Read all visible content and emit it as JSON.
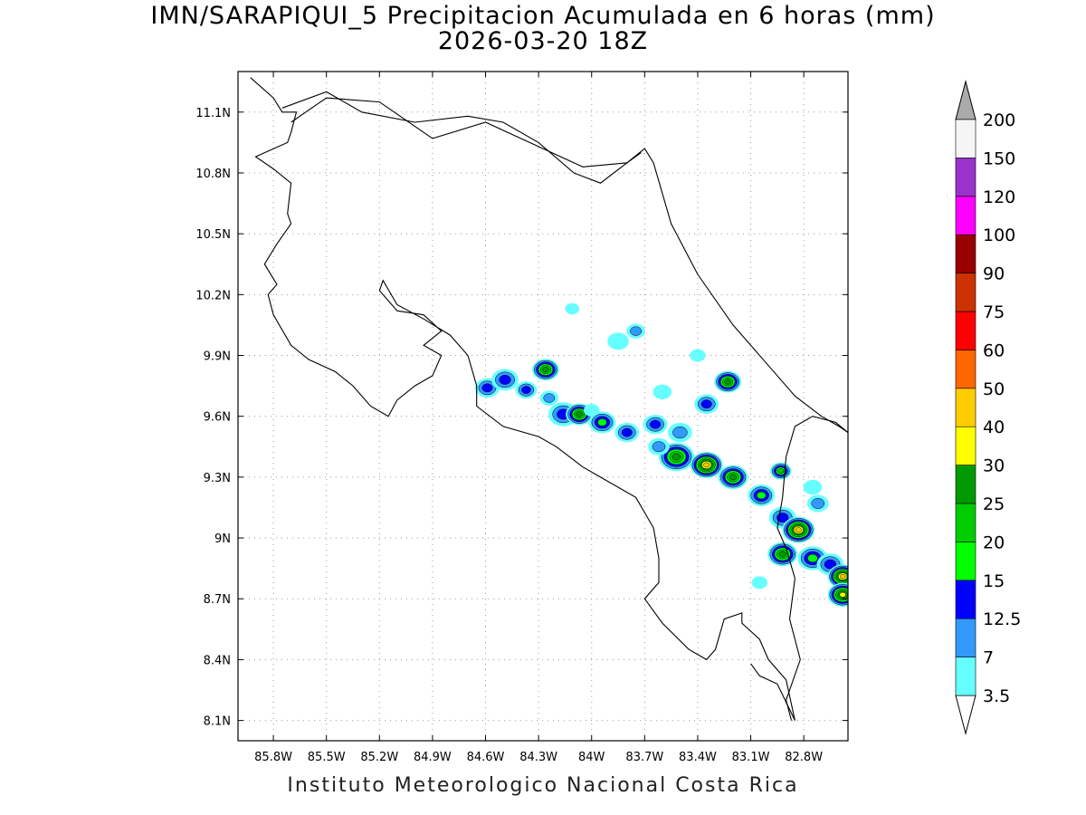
{
  "title": {
    "line1": "IMN/SARAPIQUI_5 Precipitacion Acumulada en 6 horas (mm)",
    "line2": "2026-03-20 18Z"
  },
  "footer": "Instituto Meteorologico Nacional Costa Rica",
  "map": {
    "lon_range": [
      -86.0,
      -82.55
    ],
    "lat_range": [
      8.0,
      11.3
    ],
    "lon_ticks": [
      {
        "value": -85.8,
        "label": "85.8W"
      },
      {
        "value": -85.5,
        "label": "85.5W"
      },
      {
        "value": -85.2,
        "label": "85.2W"
      },
      {
        "value": -84.9,
        "label": "84.9W"
      },
      {
        "value": -84.6,
        "label": "84.6W"
      },
      {
        "value": -84.3,
        "label": "84.3W"
      },
      {
        "value": -84.0,
        "label": "84W"
      },
      {
        "value": -83.7,
        "label": "83.7W"
      },
      {
        "value": -83.4,
        "label": "83.4W"
      },
      {
        "value": -83.1,
        "label": "83.1W"
      },
      {
        "value": -82.8,
        "label": "82.8W"
      }
    ],
    "lat_ticks": [
      {
        "value": 11.1,
        "label": "11.1N"
      },
      {
        "value": 10.8,
        "label": "10.8N"
      },
      {
        "value": 10.5,
        "label": "10.5N"
      },
      {
        "value": 10.2,
        "label": "10.2N"
      },
      {
        "value": 9.9,
        "label": "9.9N"
      },
      {
        "value": 9.6,
        "label": "9.6N"
      },
      {
        "value": 9.3,
        "label": "9.3N"
      },
      {
        "value": 9.0,
        "label": "9N"
      },
      {
        "value": 8.7,
        "label": "8.7N"
      },
      {
        "value": 8.4,
        "label": "8.4N"
      },
      {
        "value": 8.1,
        "label": "8.1N"
      }
    ],
    "grid": true,
    "coastline": [
      [
        -85.93,
        11.27
      ],
      [
        -85.8,
        11.17
      ],
      [
        -85.75,
        11.1
      ],
      [
        -85.67,
        11.1
      ],
      [
        -85.7,
        11.0
      ],
      [
        -85.72,
        10.95
      ],
      [
        -85.85,
        10.9
      ],
      [
        -85.9,
        10.88
      ],
      [
        -85.8,
        10.82
      ],
      [
        -85.7,
        10.75
      ],
      [
        -85.72,
        10.6
      ],
      [
        -85.7,
        10.55
      ],
      [
        -85.78,
        10.45
      ],
      [
        -85.85,
        10.35
      ],
      [
        -85.78,
        10.25
      ],
      [
        -85.83,
        10.2
      ],
      [
        -85.8,
        10.1
      ],
      [
        -85.7,
        9.95
      ],
      [
        -85.6,
        9.88
      ],
      [
        -85.45,
        9.82
      ],
      [
        -85.35,
        9.75
      ],
      [
        -85.25,
        9.65
      ],
      [
        -85.15,
        9.6
      ],
      [
        -85.1,
        9.68
      ],
      [
        -85.0,
        9.75
      ],
      [
        -84.9,
        9.8
      ],
      [
        -84.85,
        9.9
      ],
      [
        -84.95,
        9.95
      ],
      [
        -84.85,
        10.02
      ],
      [
        -84.95,
        10.1
      ],
      [
        -85.1,
        10.12
      ],
      [
        -85.2,
        10.22
      ],
      [
        -85.18,
        10.27
      ],
      [
        -85.1,
        10.15
      ],
      [
        -84.95,
        10.08
      ],
      [
        -84.8,
        10.0
      ],
      [
        -84.7,
        9.9
      ],
      [
        -84.65,
        9.75
      ],
      [
        -84.65,
        9.65
      ],
      [
        -84.5,
        9.55
      ],
      [
        -84.3,
        9.5
      ],
      [
        -84.2,
        9.45
      ],
      [
        -84.05,
        9.35
      ],
      [
        -83.95,
        9.3
      ],
      [
        -83.75,
        9.2
      ],
      [
        -83.65,
        9.05
      ],
      [
        -83.62,
        8.9
      ],
      [
        -83.62,
        8.78
      ],
      [
        -83.7,
        8.7
      ],
      [
        -83.6,
        8.58
      ],
      [
        -83.45,
        8.45
      ],
      [
        -83.35,
        8.4
      ],
      [
        -83.3,
        8.45
      ],
      [
        -83.25,
        8.6
      ],
      [
        -83.15,
        8.63
      ],
      [
        -83.15,
        8.58
      ],
      [
        -83.05,
        8.5
      ],
      [
        -83.0,
        8.4
      ],
      [
        -82.9,
        8.3
      ],
      [
        -82.85,
        8.1
      ],
      [
        -82.95,
        8.28
      ],
      [
        -83.05,
        8.32
      ],
      [
        -83.1,
        8.38
      ]
    ],
    "coastline_caribbean": [
      [
        -85.75,
        11.12
      ],
      [
        -85.5,
        11.2
      ],
      [
        -85.3,
        11.1
      ],
      [
        -85.0,
        11.05
      ],
      [
        -84.7,
        11.08
      ],
      [
        -84.5,
        11.05
      ],
      [
        -84.3,
        10.95
      ],
      [
        -84.1,
        10.8
      ],
      [
        -83.95,
        10.75
      ],
      [
        -83.8,
        10.85
      ],
      [
        -83.7,
        10.92
      ],
      [
        -83.65,
        10.85
      ],
      [
        -83.55,
        10.55
      ],
      [
        -83.4,
        10.3
      ],
      [
        -83.2,
        10.05
      ],
      [
        -83.0,
        9.85
      ],
      [
        -82.85,
        9.7
      ],
      [
        -82.7,
        9.6
      ],
      [
        -82.6,
        9.55
      ],
      [
        -82.55,
        9.52
      ]
    ],
    "border_panama": [
      [
        -82.55,
        9.52
      ],
      [
        -82.62,
        9.57
      ],
      [
        -82.75,
        9.6
      ],
      [
        -82.85,
        9.55
      ],
      [
        -82.9,
        9.4
      ],
      [
        -82.92,
        9.2
      ],
      [
        -82.95,
        9.05
      ],
      [
        -82.9,
        8.95
      ],
      [
        -82.85,
        8.8
      ],
      [
        -82.88,
        8.6
      ],
      [
        -82.82,
        8.4
      ],
      [
        -82.9,
        8.2
      ],
      [
        -82.87,
        8.1
      ]
    ],
    "border_nicaragua": [
      [
        -85.7,
        11.05
      ],
      [
        -85.5,
        11.17
      ],
      [
        -85.2,
        11.15
      ],
      [
        -84.9,
        10.97
      ],
      [
        -84.6,
        11.05
      ],
      [
        -84.35,
        10.95
      ],
      [
        -84.05,
        10.83
      ],
      [
        -83.8,
        10.85
      ],
      [
        -83.72,
        10.9
      ]
    ],
    "precip_cells": [
      {
        "lon": -84.59,
        "lat": 9.74,
        "r": 0.03,
        "level": 12.5
      },
      {
        "lon": -84.49,
        "lat": 9.78,
        "r": 0.035,
        "level": 12.5
      },
      {
        "lon": -84.37,
        "lat": 9.73,
        "r": 0.025,
        "level": 12.5
      },
      {
        "lon": -84.26,
        "lat": 9.83,
        "r": 0.035,
        "level": 25
      },
      {
        "lon": -84.16,
        "lat": 9.61,
        "r": 0.04,
        "level": 12.5
      },
      {
        "lon": -84.07,
        "lat": 9.61,
        "r": 0.035,
        "level": 25
      },
      {
        "lon": -84.24,
        "lat": 9.69,
        "r": 0.02,
        "level": 7
      },
      {
        "lon": -83.94,
        "lat": 9.57,
        "r": 0.035,
        "level": 15
      },
      {
        "lon": -83.8,
        "lat": 9.52,
        "r": 0.03,
        "level": 12.5
      },
      {
        "lon": -83.64,
        "lat": 9.56,
        "r": 0.03,
        "level": 12.5
      },
      {
        "lon": -83.52,
        "lat": 9.4,
        "r": 0.05,
        "level": 25
      },
      {
        "lon": -83.35,
        "lat": 9.36,
        "r": 0.045,
        "level": 40
      },
      {
        "lon": -83.2,
        "lat": 9.3,
        "r": 0.04,
        "level": 25
      },
      {
        "lon": -83.04,
        "lat": 9.21,
        "r": 0.035,
        "level": 15
      },
      {
        "lon": -83.35,
        "lat": 9.66,
        "r": 0.03,
        "level": 12.5
      },
      {
        "lon": -83.23,
        "lat": 9.77,
        "r": 0.035,
        "level": 25
      },
      {
        "lon": -83.75,
        "lat": 10.02,
        "r": 0.02,
        "level": 7
      },
      {
        "lon": -83.85,
        "lat": 9.97,
        "r": 0.025,
        "level": 3.5
      },
      {
        "lon": -82.93,
        "lat": 9.33,
        "r": 0.025,
        "level": 20
      },
      {
        "lon": -82.92,
        "lat": 9.1,
        "r": 0.035,
        "level": 12.5
      },
      {
        "lon": -82.83,
        "lat": 9.04,
        "r": 0.045,
        "level": 40
      },
      {
        "lon": -82.92,
        "lat": 8.92,
        "r": 0.04,
        "level": 25
      },
      {
        "lon": -82.75,
        "lat": 8.9,
        "r": 0.04,
        "level": 15
      },
      {
        "lon": -82.65,
        "lat": 8.87,
        "r": 0.035,
        "level": 12.5
      },
      {
        "lon": -82.58,
        "lat": 8.81,
        "r": 0.04,
        "level": 40
      },
      {
        "lon": -82.58,
        "lat": 8.72,
        "r": 0.04,
        "level": 30
      },
      {
        "lon": -82.72,
        "lat": 9.17,
        "r": 0.025,
        "level": 7
      },
      {
        "lon": -82.75,
        "lat": 9.25,
        "r": 0.02,
        "level": 3.5
      },
      {
        "lon": -83.05,
        "lat": 8.78,
        "r": 0.015,
        "level": 3.5
      },
      {
        "lon": -83.5,
        "lat": 9.52,
        "r": 0.03,
        "level": 7
      },
      {
        "lon": -83.62,
        "lat": 9.45,
        "r": 0.025,
        "level": 7
      },
      {
        "lon": -84.11,
        "lat": 10.13,
        "r": 0.012,
        "level": 3.5
      },
      {
        "lon": -83.6,
        "lat": 9.72,
        "r": 0.02,
        "level": 3.5
      },
      {
        "lon": -83.4,
        "lat": 9.9,
        "r": 0.015,
        "level": 3.5
      },
      {
        "lon": -84.0,
        "lat": 9.63,
        "r": 0.015,
        "level": 3.5
      }
    ]
  },
  "colorbar": {
    "labels": [
      "3.5",
      "7",
      "12.5",
      "15",
      "20",
      "25",
      "30",
      "40",
      "50",
      "60",
      "75",
      "90",
      "100",
      "120",
      "150",
      "200"
    ],
    "colors": [
      "#66ffff",
      "#3399ff",
      "#0000ff",
      "#00ff00",
      "#00cc00",
      "#009900",
      "#ffff00",
      "#ffcc00",
      "#ff6600",
      "#ff0000",
      "#cc3300",
      "#990000",
      "#ff00ff",
      "#9933cc",
      "#f5f5f5"
    ],
    "under_color": "#ffffff",
    "over_color": "#aaaaaa"
  }
}
